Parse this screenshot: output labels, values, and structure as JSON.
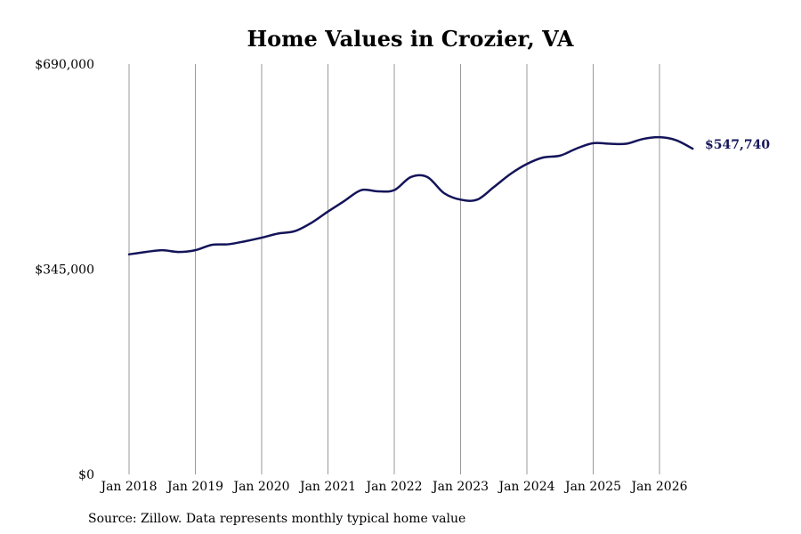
{
  "chart_data": {
    "type": "line",
    "title": "Home Values in Crozier, VA",
    "xlabel": "",
    "ylabel": "",
    "ylim": [
      0,
      690000
    ],
    "y_ticks": [
      "$0",
      "$345,000",
      "$690,000"
    ],
    "y_tick_values": [
      0,
      345000,
      690000
    ],
    "x_ticks": [
      "Jan 2018",
      "Jan 2019",
      "Jan 2020",
      "Jan 2021",
      "Jan 2022",
      "Jan 2023",
      "Jan 2024",
      "Jan 2025",
      "Jan 2026"
    ],
    "grid": "vertical",
    "line_color": "#14145a",
    "end_label": "$547,740",
    "series": [
      {
        "x": [
          "2018-01",
          "2018-04",
          "2018-07",
          "2018-10",
          "2019-01",
          "2019-04",
          "2019-07",
          "2019-10",
          "2020-01",
          "2020-04",
          "2020-07",
          "2020-10",
          "2021-01",
          "2021-04",
          "2021-07",
          "2021-10",
          "2022-01",
          "2022-04",
          "2022-07",
          "2022-10",
          "2023-01",
          "2023-04",
          "2023-07",
          "2023-10",
          "2024-01",
          "2024-04",
          "2024-07",
          "2024-10",
          "2025-01",
          "2025-04",
          "2025-07",
          "2025-10",
          "2026-01",
          "2026-04",
          "2026-07"
        ],
        "values": [
          370000,
          374000,
          377000,
          374000,
          377000,
          386000,
          387000,
          392000,
          398000,
          405000,
          409000,
          423000,
          442000,
          460000,
          478000,
          476000,
          478000,
          500000,
          500000,
          473000,
          462000,
          462000,
          483000,
          505000,
          522000,
          533000,
          536000,
          548000,
          557000,
          556000,
          556000,
          564000,
          567000,
          562000,
          547740
        ]
      }
    ]
  },
  "source_note": "Source: Zillow. Data represents monthly typical home value"
}
